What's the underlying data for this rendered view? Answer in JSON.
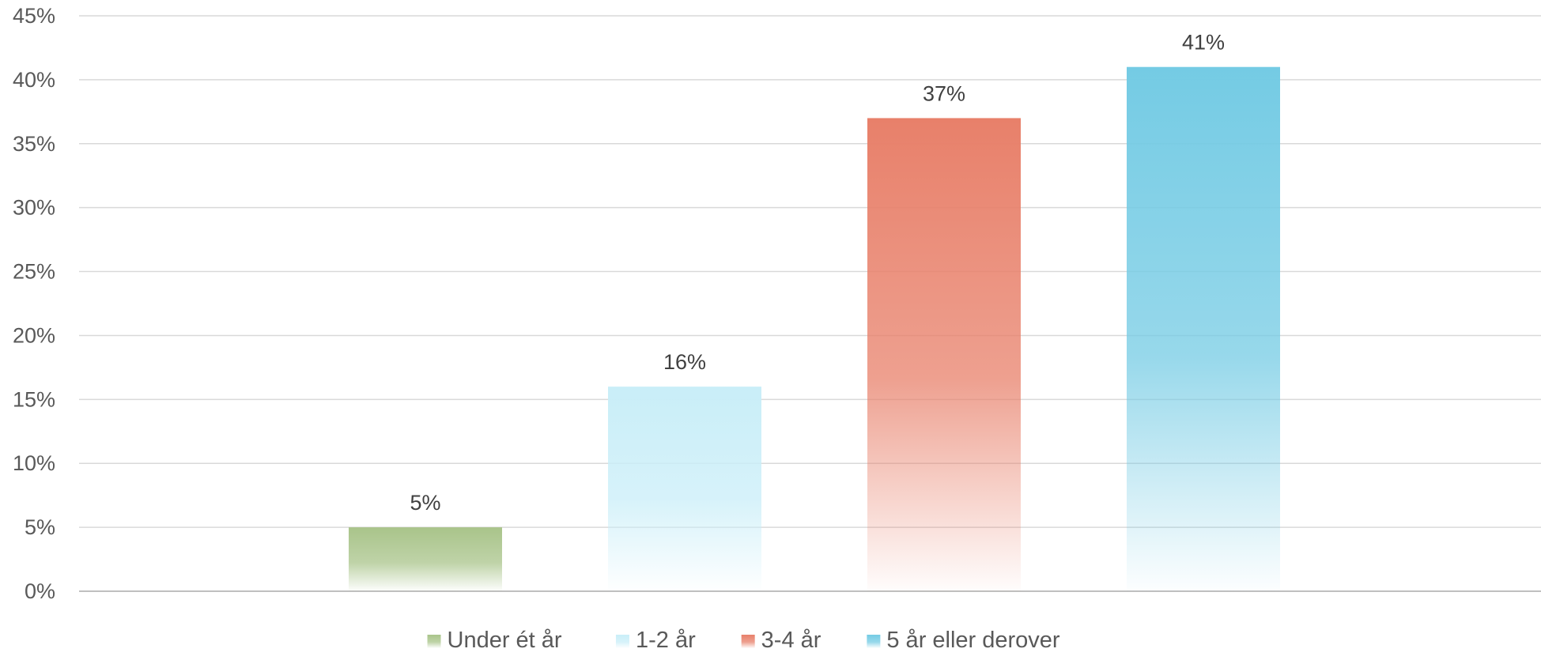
{
  "chart_data": {
    "type": "bar",
    "title": "",
    "xlabel": "",
    "ylabel": "",
    "categories": [
      "Under ét år",
      "1-2 år",
      "3-4 år",
      "5 år eller derover"
    ],
    "series": [
      {
        "name": "",
        "values": [
          5,
          16,
          37,
          41
        ],
        "data_labels": [
          "5%",
          "16%",
          "37%",
          "41%"
        ],
        "colors": [
          "#a9c48a",
          "#c9eef8",
          "#e8806a",
          "#74cbe4"
        ]
      }
    ],
    "ylim": [
      0,
      45
    ],
    "yticks": [
      0,
      5,
      10,
      15,
      20,
      25,
      30,
      35,
      40,
      45
    ],
    "ytick_labels": [
      "0%",
      "5%",
      "10%",
      "15%",
      "20%",
      "25%",
      "30%",
      "35%",
      "40%",
      "45%"
    ],
    "grid": true,
    "gradient_fill": "fade to white at base",
    "legend": {
      "position": "bottom",
      "entries": [
        "Under ét år",
        "1-2 år",
        "3-4 år",
        "5 år eller derover"
      ]
    }
  }
}
